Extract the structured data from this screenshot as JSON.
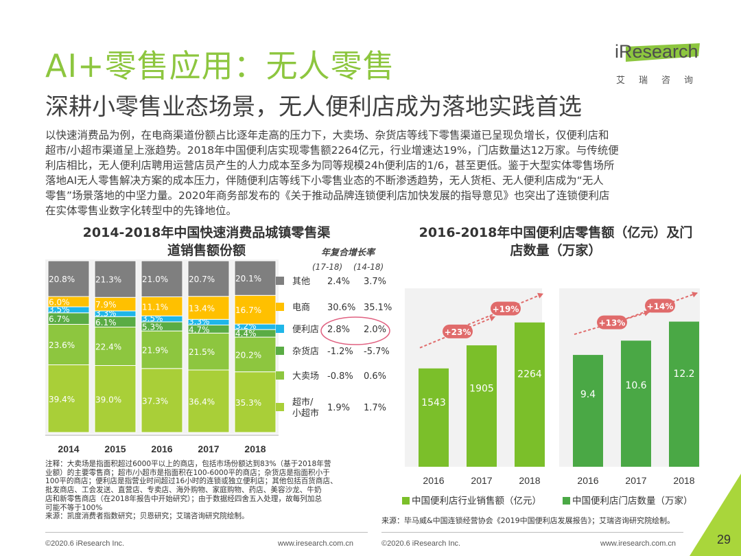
{
  "header": {
    "title": "AI+零售应用：无人零售",
    "subtitle": "深耕小零售业态场景，无人便利店成为落地实践首选"
  },
  "logo": {
    "name": "iResearch",
    "cn": "艾瑞咨询",
    "icon": "iresearch-logo"
  },
  "body_lines": [
    "以快速消费品为例，在电商渠道份额占比逐年走高的压力下，大卖场、杂货店等线下零售渠道已呈现负增长，仅便利店和",
    "超市/小超市渠道呈上涨趋势。2018年中国便利店实现零售额2264亿元，行业增速达19%，门店数量达12万家。与传统便",
    "利店相比，无人便利店聘用运营店员产生的人力成本至多为同等规模24h便利店的1/6，甚至更低。鉴于大型实体零售场所",
    "落地AI无人零售解决方案的成本压力，伴随便利店等线下小零售业态的不断渗透趋势，无人货柜、无人便利店成为“无人",
    "零售”场景落地的中坚力量。2020年商务部发布的《关于推动品牌连锁便利店加快发展的指导意见》也突出了连锁便利店",
    "在实体零售业数字化转型中的先锋地位。"
  ],
  "chart_data": [
    {
      "type": "bar",
      "stacked": true,
      "title": "2014-2018年中国快速消费品城镇零售渠道销售额份额",
      "title_lines": [
        "2014-2018年中国快速消费品城镇零售渠",
        "道销售额份额"
      ],
      "categories": [
        "2014",
        "2015",
        "2016",
        "2017",
        "2018"
      ],
      "series": [
        {
          "name": "超市/小超市",
          "name_lines": [
            "超市/",
            "小超市"
          ],
          "color": "#a9cf38",
          "values": [
            39.4,
            39.0,
            37.3,
            36.4,
            35.3
          ],
          "labels": [
            "39.4%",
            "39.0%",
            "37.3%",
            "36.4%",
            "35.3%"
          ],
          "cagr_1718": "1.9%",
          "cagr_1418": "1.7%"
        },
        {
          "name": "大卖场",
          "name_lines": [
            "大卖场"
          ],
          "color": "#8dc63f",
          "values": [
            23.6,
            22.4,
            21.9,
            21.5,
            20.2
          ],
          "labels": [
            "23.6%",
            "22.4%",
            "21.9%",
            "21.5%",
            "20.2%"
          ],
          "cagr_1718": "-0.8%",
          "cagr_1418": "0.6%"
        },
        {
          "name": "杂货店",
          "name_lines": [
            "杂货店"
          ],
          "color": "#5aac44",
          "values": [
            6.7,
            6.1,
            5.3,
            4.7,
            4.4
          ],
          "labels": [
            "6.7%",
            "6.1%",
            "5.3%",
            "4.7%",
            "4.4%"
          ],
          "cagr_1718": "-1.2%",
          "cagr_1418": "-5.7%"
        },
        {
          "name": "便利店",
          "name_lines": [
            "便利店"
          ],
          "color": "#1fb6e8",
          "values": [
            3.5,
            3.3,
            3.5,
            3.3,
            3.2
          ],
          "labels": [
            "3.5%",
            "3.3%",
            "3.5%",
            "3.3%",
            "3.2%"
          ],
          "cagr_1718": "2.8%",
          "cagr_1418": "2.0%"
        },
        {
          "name": "电商",
          "name_lines": [
            "电商"
          ],
          "color": "#ffc000",
          "values": [
            6.0,
            7.9,
            11.1,
            13.4,
            16.7
          ],
          "labels": [
            "6.0%",
            "7.9%",
            "11.1%",
            "13.4%",
            "16.7%"
          ],
          "cagr_1718": "30.6%",
          "cagr_1418": "35.1%"
        },
        {
          "name": "其他",
          "name_lines": [
            "其他"
          ],
          "color": "#7f7f7f",
          "values": [
            20.8,
            21.3,
            21.0,
            20.7,
            20.1
          ],
          "labels": [
            "20.8%",
            "21.3%",
            "21.0%",
            "20.7%",
            "20.1%"
          ],
          "cagr_1718": "2.4%",
          "cagr_1418": "3.7%"
        }
      ],
      "legend_title": "年复合增长率",
      "legend_cols": [
        "(17-18)",
        "(14-18)"
      ],
      "ylim": [
        0,
        100
      ],
      "annotation": "红色圆圈标注便利店增长率"
    },
    {
      "type": "bar",
      "title": "2016-2018年中国便利店零售额（亿元）及门店数量（万家）",
      "title_lines": [
        "2016-2018年中国便利店零售额（亿元）及门",
        "店数量（万家）"
      ],
      "groups": [
        {
          "name": "中国便利店行业销售额（亿元）",
          "color": "#7bbf2a",
          "categories": [
            "2016",
            "2017",
            "2018"
          ],
          "values": [
            1543,
            1905,
            2264
          ],
          "labels": [
            "1543",
            "1905",
            "2264"
          ],
          "ylim": [
            0,
            2800
          ],
          "growth": [
            "+23%",
            "+19%"
          ]
        },
        {
          "name": "中国便利店门店数量（万家）",
          "color": "#4aa845",
          "categories": [
            "2016",
            "2017",
            "2018"
          ],
          "values": [
            9.4,
            10.6,
            12.2
          ],
          "labels": [
            "9.4",
            "10.6",
            "12.2"
          ],
          "ylim": [
            0,
            15
          ],
          "growth": [
            "+13%",
            "+14%"
          ]
        }
      ]
    }
  ],
  "notes": [
    "注释：大卖场是指面积超过6000平以上的商店，包括市场份额达到83%（基于2018年营",
    "业额）的主要零售商；超市/小超市是指面积在100-6000平的商店；杂货店是指面积小于",
    "100平的商店；便利店是指营业时间超过16小时的连锁或独立便利店；其他包括百货商店、",
    "批发商店、工会发送、直营店、专卖店、海外购物、家庭购物、药店、美容沙龙、牛奶",
    "店和新零售商店（在2018年报告中开始研究）；由于数据经四舍五入处理，故每列加总",
    "可能不等于100%",
    "来源：凯度消费者指数研究；贝恩研究；艾瑞咨询研究院绘制。"
  ],
  "source_right": "来源：毕马威&中国连锁经营协会《2019中国便利店发展报告》；艾瑞咨询研究院绘制。",
  "footer": {
    "left1": "©2020.6 iResearch Inc.",
    "mid1": "www.iresearch.com.cn",
    "left2": "©2020.6 iResearch Inc.",
    "mid2": "www.iresearch.com.cn",
    "page": "29"
  }
}
